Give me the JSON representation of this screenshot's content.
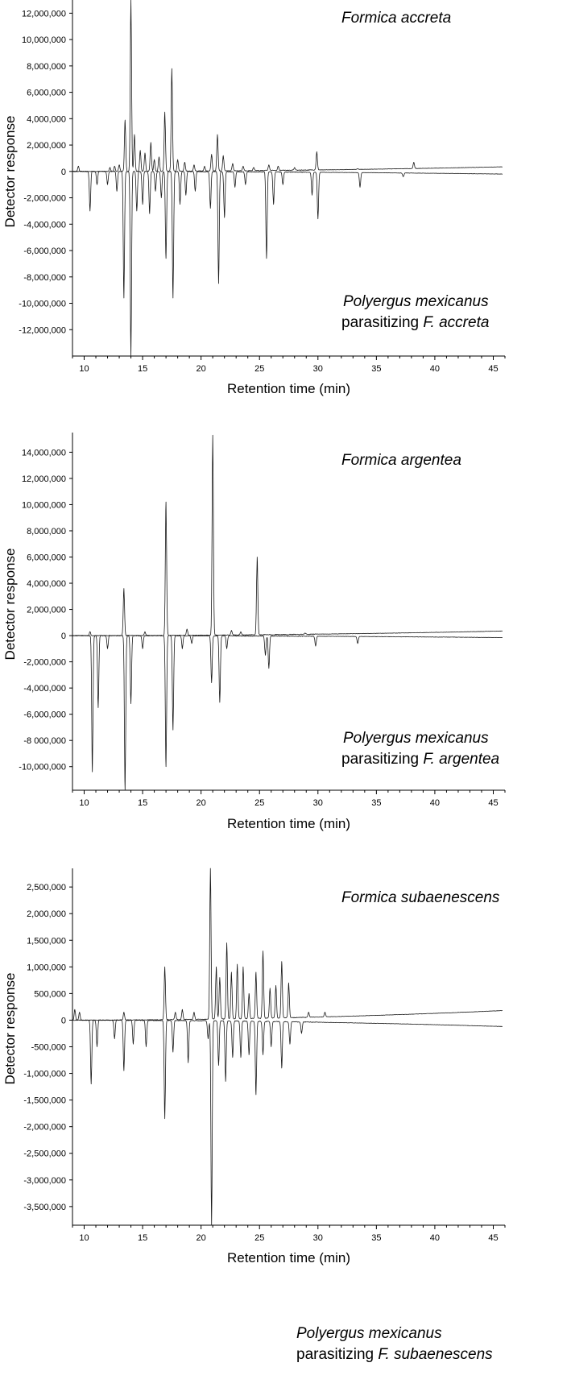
{
  "chart_data": [
    {
      "type": "line",
      "xlabel": "Retention time (min)",
      "ylabel": "Detector  response",
      "xlim": [
        9,
        46
      ],
      "ylim": [
        -14000000,
        13000000
      ],
      "x_ticks": [
        10,
        15,
        20,
        25,
        30,
        35,
        40,
        45
      ],
      "x_tick_labels": [
        "10",
        "15",
        "20",
        "25",
        "30",
        "35",
        "40",
        "45"
      ],
      "y_ticks": [
        12000000,
        10000000,
        8000000,
        6000000,
        4000000,
        2000000,
        0,
        -2000000,
        -4000000,
        -6000000,
        -8000000,
        -10000000,
        -12000000
      ],
      "y_tick_labels": [
        "12,000,000",
        "10,000,000",
        "8,000,000",
        "6,000,000",
        "4,000,000",
        "2,000,000",
        "0",
        "-2,000,000",
        "-4,000,000",
        "-6,000,000",
        "-8,000,000",
        "-10,000,000",
        "-12,000,000"
      ],
      "annotations": [
        {
          "lines": [
            [
              {
                "text": "Formica accreta",
                "italic": true
              }
            ]
          ],
          "position": "top-right"
        },
        {
          "lines": [
            [
              {
                "text": "Polyergus mexicanus",
                "italic": true
              }
            ],
            [
              {
                "text": "parasitizing ",
                "italic": false
              },
              {
                "text": "F. accreta",
                "italic": true
              }
            ]
          ],
          "position": "bottom-right"
        }
      ],
      "grid": false,
      "series": [
        {
          "direction": "up",
          "baseline_start": 0,
          "baseline_end": 350000,
          "peaks": [
            [
              9.5,
              400000
            ],
            [
              12.2,
              300000
            ],
            [
              12.6,
              400000
            ],
            [
              13.0,
              500000
            ],
            [
              13.5,
              3900000
            ],
            [
              14.0,
              13000000
            ],
            [
              14.3,
              2800000
            ],
            [
              14.8,
              1600000
            ],
            [
              15.2,
              1400000
            ],
            [
              15.7,
              2200000
            ],
            [
              16.0,
              900000
            ],
            [
              16.4,
              1100000
            ],
            [
              16.9,
              4500000
            ],
            [
              17.5,
              7800000
            ],
            [
              18.0,
              900000
            ],
            [
              18.6,
              700000
            ],
            [
              19.4,
              500000
            ],
            [
              20.3,
              400000
            ],
            [
              20.9,
              1300000
            ],
            [
              21.4,
              2800000
            ],
            [
              21.9,
              1200000
            ],
            [
              22.7,
              600000
            ],
            [
              23.6,
              400000
            ],
            [
              24.5,
              300000
            ],
            [
              25.8,
              500000
            ],
            [
              26.6,
              400000
            ],
            [
              28.0,
              300000
            ],
            [
              29.9,
              1500000
            ],
            [
              33.4,
              200000
            ],
            [
              38.2,
              700000
            ]
          ]
        },
        {
          "direction": "down",
          "baseline_start": 0,
          "baseline_end": -200000,
          "peaks": [
            [
              10.5,
              -3000000
            ],
            [
              11.1,
              -1000000
            ],
            [
              12.0,
              -1000000
            ],
            [
              12.8,
              -1500000
            ],
            [
              13.4,
              -9600000
            ],
            [
              14.0,
              -14000000
            ],
            [
              14.5,
              -3000000
            ],
            [
              15.0,
              -2500000
            ],
            [
              15.6,
              -3200000
            ],
            [
              16.1,
              -1500000
            ],
            [
              16.6,
              -2000000
            ],
            [
              17.0,
              -6600000
            ],
            [
              17.6,
              -9600000
            ],
            [
              18.2,
              -2500000
            ],
            [
              18.7,
              -1800000
            ],
            [
              19.5,
              -1500000
            ],
            [
              20.8,
              -2800000
            ],
            [
              21.5,
              -8500000
            ],
            [
              22.0,
              -3500000
            ],
            [
              22.9,
              -1200000
            ],
            [
              23.8,
              -1000000
            ],
            [
              25.6,
              -6600000
            ],
            [
              26.2,
              -2500000
            ],
            [
              27.0,
              -1000000
            ],
            [
              29.5,
              -1800000
            ],
            [
              30.0,
              -3600000
            ],
            [
              33.6,
              -1200000
            ],
            [
              37.3,
              -400000
            ]
          ]
        }
      ]
    },
    {
      "type": "line",
      "xlabel": "Retention time (min)",
      "ylabel": "Detector  response",
      "xlim": [
        9,
        46
      ],
      "ylim": [
        -11800000,
        15500000
      ],
      "x_ticks": [
        10,
        15,
        20,
        25,
        30,
        35,
        40,
        45
      ],
      "x_tick_labels": [
        "10",
        "15",
        "20",
        "25",
        "30",
        "35",
        "40",
        "45"
      ],
      "y_ticks": [
        14000000,
        12000000,
        10000000,
        8000000,
        6000000,
        4000000,
        2000000,
        0,
        -2000000,
        -4000000,
        -6000000,
        -8000000,
        -10000000
      ],
      "y_tick_labels": [
        "14,000,000",
        "12,000,000",
        "10,000,000",
        "8,000,000",
        "6,000,000",
        "4,000,000",
        "2,000,000",
        "0",
        "-2,000,000",
        "-4,000,000",
        "-6,000,000",
        "-8 000,000",
        "-10,000,000"
      ],
      "annotations": [
        {
          "lines": [
            [
              {
                "text": "Formica argentea",
                "italic": true
              }
            ]
          ],
          "position": "top-right"
        },
        {
          "lines": [
            [
              {
                "text": "Polyergus mexicanus",
                "italic": true
              }
            ],
            [
              {
                "text": "parasitizing ",
                "italic": false
              },
              {
                "text": "F. argentea",
                "italic": true
              }
            ]
          ],
          "position": "bottom-right"
        }
      ],
      "grid": false,
      "series": [
        {
          "direction": "up",
          "baseline_start": 0,
          "baseline_end": 350000,
          "peaks": [
            [
              10.5,
              300000
            ],
            [
              13.4,
              3600000
            ],
            [
              15.2,
              300000
            ],
            [
              17.0,
              10200000
            ],
            [
              18.8,
              500000
            ],
            [
              21.0,
              15300000
            ],
            [
              22.6,
              400000
            ],
            [
              23.4,
              300000
            ],
            [
              24.8,
              6000000
            ],
            [
              28.9,
              200000
            ]
          ]
        },
        {
          "direction": "down",
          "baseline_start": 0,
          "baseline_end": -150000,
          "peaks": [
            [
              10.7,
              -10400000
            ],
            [
              11.2,
              -5500000
            ],
            [
              12.0,
              -1000000
            ],
            [
              13.5,
              -11800000
            ],
            [
              14.0,
              -5200000
            ],
            [
              15.0,
              -1000000
            ],
            [
              17.0,
              -10000000
            ],
            [
              17.6,
              -7200000
            ],
            [
              18.4,
              -1000000
            ],
            [
              19.2,
              -600000
            ],
            [
              20.9,
              -3600000
            ],
            [
              21.6,
              -5100000
            ],
            [
              22.2,
              -1000000
            ],
            [
              25.5,
              -1500000
            ],
            [
              25.8,
              -2500000
            ],
            [
              29.8,
              -800000
            ],
            [
              33.4,
              -600000
            ]
          ]
        }
      ]
    },
    {
      "type": "line",
      "xlabel": "Retention time (min)",
      "ylabel": "Detector response",
      "xlim": [
        9,
        46
      ],
      "ylim": [
        -3850000,
        2850000
      ],
      "x_ticks": [
        10,
        15,
        20,
        25,
        30,
        35,
        40,
        45
      ],
      "x_tick_labels": [
        "10",
        "15",
        "20",
        "25",
        "30",
        "35",
        "40",
        "45"
      ],
      "y_ticks": [
        2500000,
        2000000,
        1500000,
        1000000,
        500000,
        0,
        -500000,
        -1000000,
        -1500000,
        -2000000,
        -2500000,
        -3000000,
        -3500000
      ],
      "y_tick_labels": [
        "2,500,000",
        "2,000,000",
        "1,500,000",
        "1,000,000",
        "500,000",
        "0",
        "-500,000",
        "-1,000,000",
        "-1,500,000",
        "-2,000,000",
        "-2,500,000",
        "-3,000,000",
        "-3,500,000"
      ],
      "annotations": [
        {
          "lines": [
            [
              {
                "text": "Formica subaenescens",
                "italic": true
              }
            ]
          ],
          "position": "top-right"
        },
        {
          "lines": [
            [
              {
                "text": "Polyergus mexicanus",
                "italic": true
              }
            ],
            [
              {
                "text": "parasitizing ",
                "italic": false
              },
              {
                "text": "F. subaenescens",
                "italic": true
              }
            ]
          ],
          "position": "bottom-right"
        }
      ],
      "grid": false,
      "series": [
        {
          "direction": "up",
          "baseline_start": 0,
          "baseline_end": 180000,
          "peaks": [
            [
              9.2,
              200000
            ],
            [
              9.6,
              150000
            ],
            [
              13.4,
              150000
            ],
            [
              16.9,
              1000000
            ],
            [
              17.8,
              150000
            ],
            [
              18.4,
              200000
            ],
            [
              19.4,
              150000
            ],
            [
              20.8,
              2850000
            ],
            [
              21.3,
              1000000
            ],
            [
              21.6,
              800000
            ],
            [
              22.2,
              1450000
            ],
            [
              22.6,
              900000
            ],
            [
              23.1,
              1050000
            ],
            [
              23.6,
              1000000
            ],
            [
              24.1,
              500000
            ],
            [
              24.7,
              900000
            ],
            [
              25.3,
              1300000
            ],
            [
              25.9,
              600000
            ],
            [
              26.4,
              650000
            ],
            [
              26.9,
              1100000
            ],
            [
              27.5,
              700000
            ],
            [
              29.2,
              150000
            ],
            [
              30.6,
              150000
            ]
          ]
        },
        {
          "direction": "down",
          "baseline_start": 0,
          "baseline_end": -120000,
          "peaks": [
            [
              10.6,
              -1200000
            ],
            [
              11.1,
              -500000
            ],
            [
              12.6,
              -350000
            ],
            [
              13.4,
              -950000
            ],
            [
              14.2,
              -450000
            ],
            [
              15.3,
              -500000
            ],
            [
              16.9,
              -1850000
            ],
            [
              17.6,
              -600000
            ],
            [
              18.9,
              -800000
            ],
            [
              20.6,
              -350000
            ],
            [
              20.9,
              -3850000
            ],
            [
              21.5,
              -850000
            ],
            [
              22.1,
              -1150000
            ],
            [
              22.7,
              -700000
            ],
            [
              23.4,
              -700000
            ],
            [
              24.1,
              -650000
            ],
            [
              24.7,
              -1400000
            ],
            [
              25.3,
              -650000
            ],
            [
              26.0,
              -500000
            ],
            [
              26.9,
              -900000
            ],
            [
              27.6,
              -450000
            ],
            [
              28.6,
              -250000
            ]
          ]
        }
      ]
    }
  ]
}
